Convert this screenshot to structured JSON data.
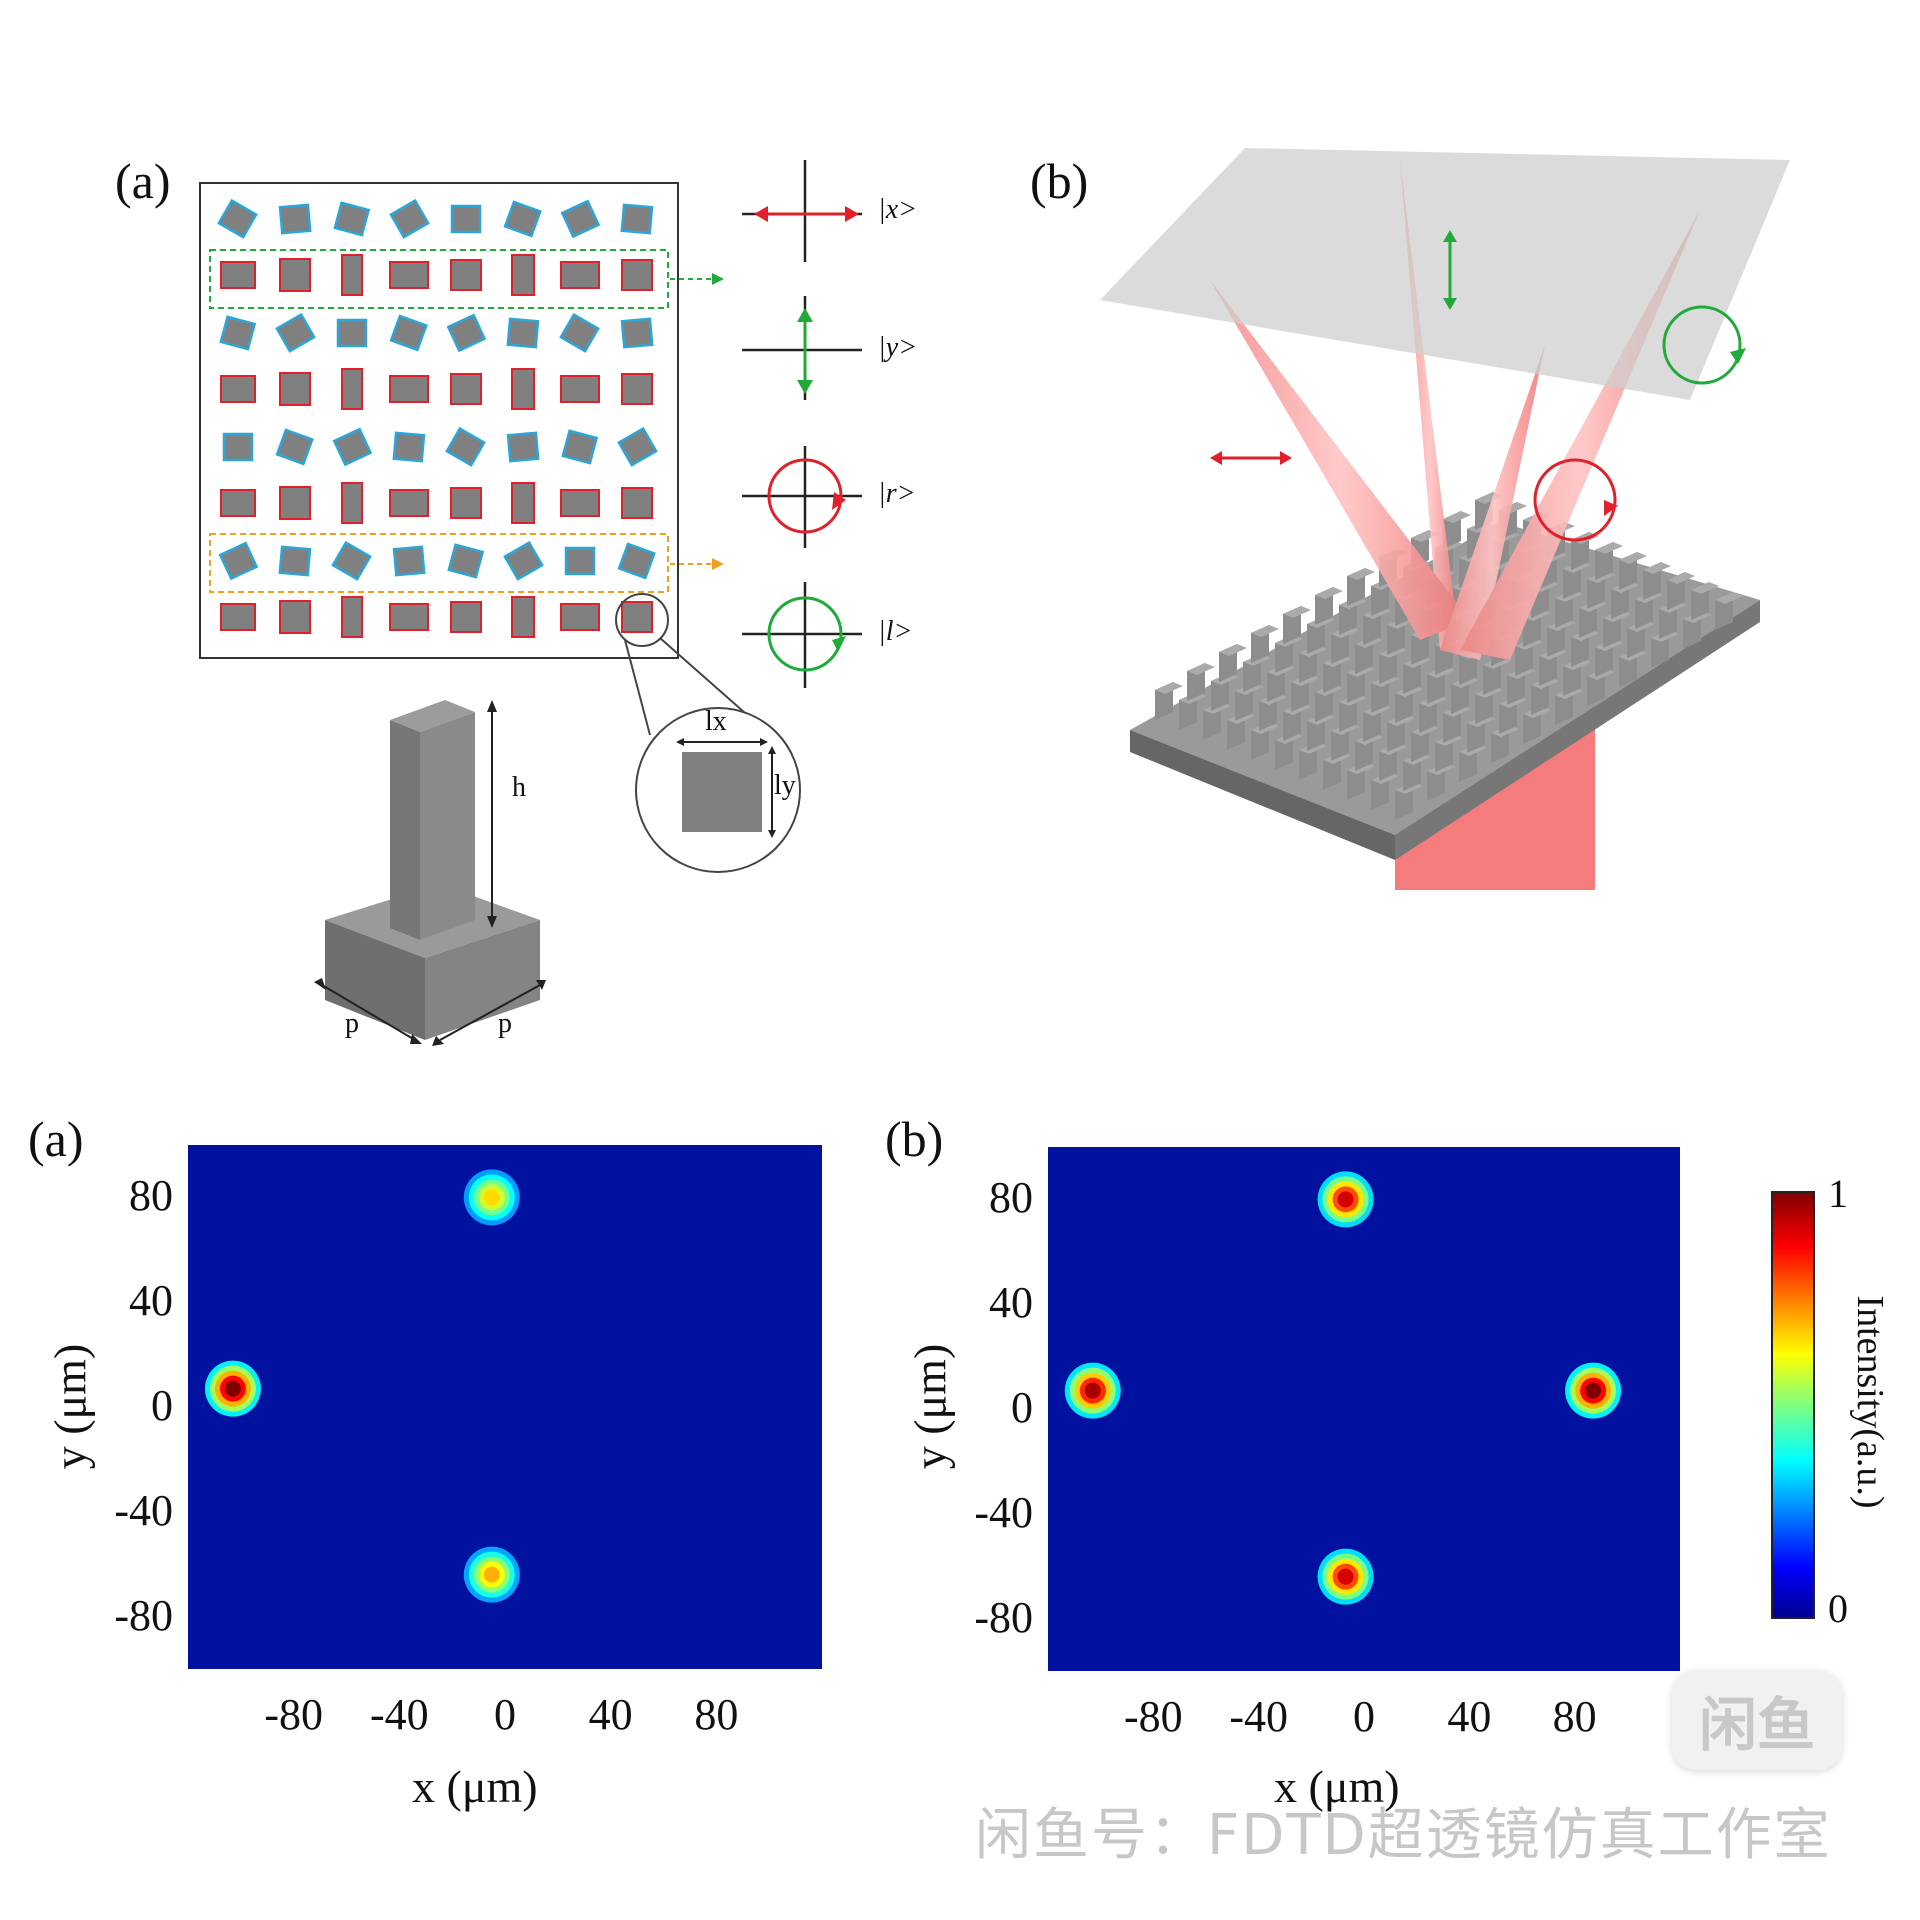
{
  "top_left": {
    "label": "(a)",
    "basis_states": [
      "|x>",
      "|y>",
      "|r>",
      "|l>"
    ],
    "dims": {
      "lx": "lx",
      "ly": "ly",
      "h": "h",
      "p1": "p",
      "p2": "p"
    }
  },
  "top_right": {
    "label": "(b)"
  },
  "colors": {
    "red": "#e0202a",
    "green": "#1faa3a",
    "cyan": "#2aa7d8",
    "orange": "#f0a020",
    "gray": "#808080",
    "plot_bg": "#00129f"
  },
  "chart_data": [
    {
      "type": "heatmap",
      "label": "(a)",
      "xlabel": "x (μm)",
      "ylabel": "y (μm)",
      "xticks": [
        "-80",
        "-40",
        "0",
        "40",
        "80"
      ],
      "yticks": [
        "80",
        "40",
        "0",
        "-40",
        "-80"
      ],
      "xlim": [
        -120,
        120
      ],
      "ylim": [
        -100,
        100
      ],
      "spots": [
        {
          "x": -103,
          "y": 7,
          "intensity": 1.0
        },
        {
          "x": -5,
          "y": 80,
          "intensity": 0.6
        },
        {
          "x": -5,
          "y": -64,
          "intensity": 0.65
        }
      ]
    },
    {
      "type": "heatmap",
      "label": "(b)",
      "xlabel": "x (μm)",
      "ylabel": "y (μm)",
      "xticks": [
        "-80",
        "-40",
        "0",
        "40",
        "80"
      ],
      "yticks": [
        "80",
        "40",
        "0",
        "-40",
        "-80"
      ],
      "xlim": [
        -120,
        120
      ],
      "ylim": [
        -100,
        100
      ],
      "spots": [
        {
          "x": -103,
          "y": 7,
          "intensity": 0.95
        },
        {
          "x": 87,
          "y": 7,
          "intensity": 1.0
        },
        {
          "x": -7,
          "y": 80,
          "intensity": 0.9
        },
        {
          "x": -7,
          "y": -64,
          "intensity": 0.9
        }
      ],
      "colorbar": {
        "label": "Intensity(a.u.)",
        "min_label": "0",
        "max_label": "1",
        "range": [
          0,
          1
        ]
      }
    }
  ],
  "watermark": {
    "text": "闲鱼号：FDTD超透镜仿真工作室",
    "badge": "闲鱼"
  }
}
